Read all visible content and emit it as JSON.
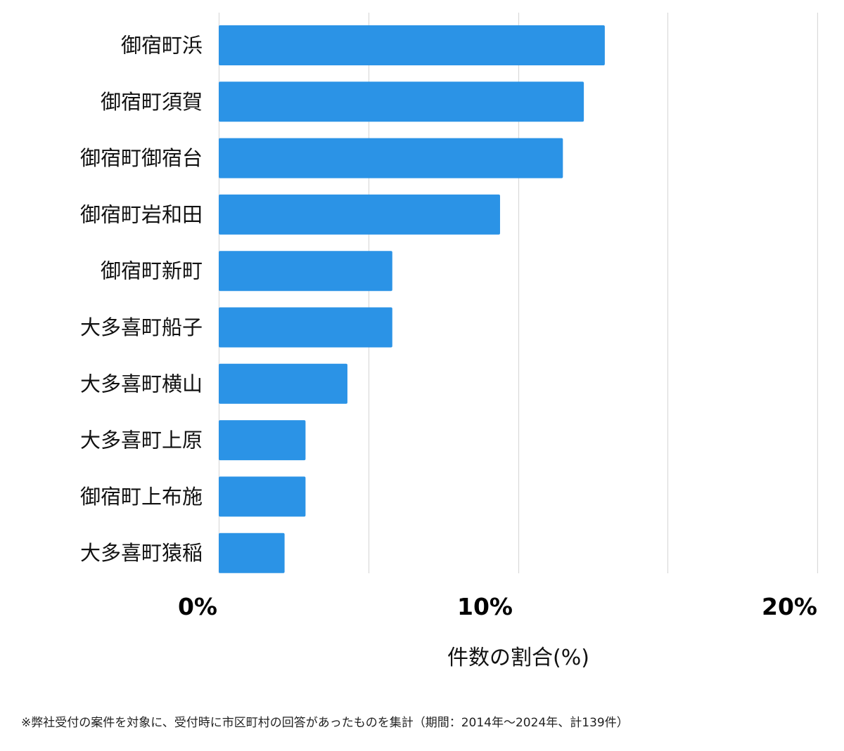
{
  "chart_data": {
    "type": "bar",
    "orientation": "horizontal",
    "categories": [
      "御宿町浜",
      "御宿町須賀",
      "御宿町御宿台",
      "御宿町岩和田",
      "御宿町新町",
      "大多喜町船子",
      "大多喜町横山",
      "大多喜町上原",
      "御宿町上布施",
      "大多喜町猿稲"
    ],
    "values": [
      12.9,
      12.2,
      11.5,
      9.4,
      5.8,
      5.8,
      4.3,
      2.9,
      2.9,
      2.2
    ],
    "xlim": [
      0,
      20
    ],
    "x_ticks": [
      "0%",
      "10%",
      "20%"
    ],
    "x_tick_values": [
      0,
      10,
      20
    ],
    "gridline_values": [
      0,
      5,
      10,
      15,
      20
    ],
    "xlabel": "件数の割合(%)",
    "ylabel": "",
    "grid": true,
    "legend": "none",
    "bar_color": "#2b93e6",
    "grid_color": "#d9d9d9"
  },
  "footnote": "※弊社受付の案件を対象に、受付時に市区町村の回答があったものを集計（期間：2014年～2024年、計139件）"
}
